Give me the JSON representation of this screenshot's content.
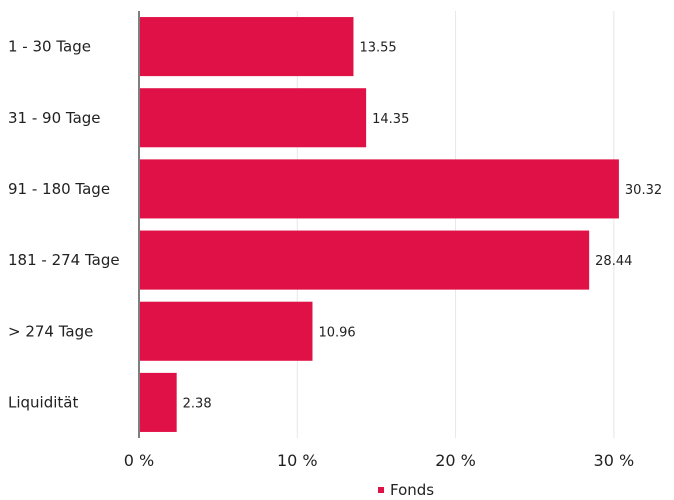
{
  "chart_data": {
    "type": "bar",
    "orientation": "horizontal",
    "categories": [
      "1 - 30 Tage",
      "31 - 90 Tage",
      "91 - 180 Tage",
      "181 - 274 Tage",
      "> 274 Tage",
      "Liquidität"
    ],
    "series": [
      {
        "name": "Fonds",
        "values": [
          13.55,
          14.35,
          30.32,
          28.44,
          10.96,
          2.38
        ]
      }
    ],
    "value_labels": [
      "13.55",
      "14.35",
      "30.32",
      "28.44",
      "10.96",
      "2.38"
    ],
    "x_ticks": [
      0,
      10,
      20,
      30
    ],
    "x_tick_labels": [
      "0 %",
      "10 %",
      "20 %",
      "30 %"
    ],
    "xlim": [
      0,
      33.8
    ],
    "grid": true,
    "legend_position": "bottom-center",
    "colors": {
      "bar": "#e01146",
      "grid": "#e6e6e6",
      "axis": "#555555",
      "text": "#222222"
    }
  }
}
